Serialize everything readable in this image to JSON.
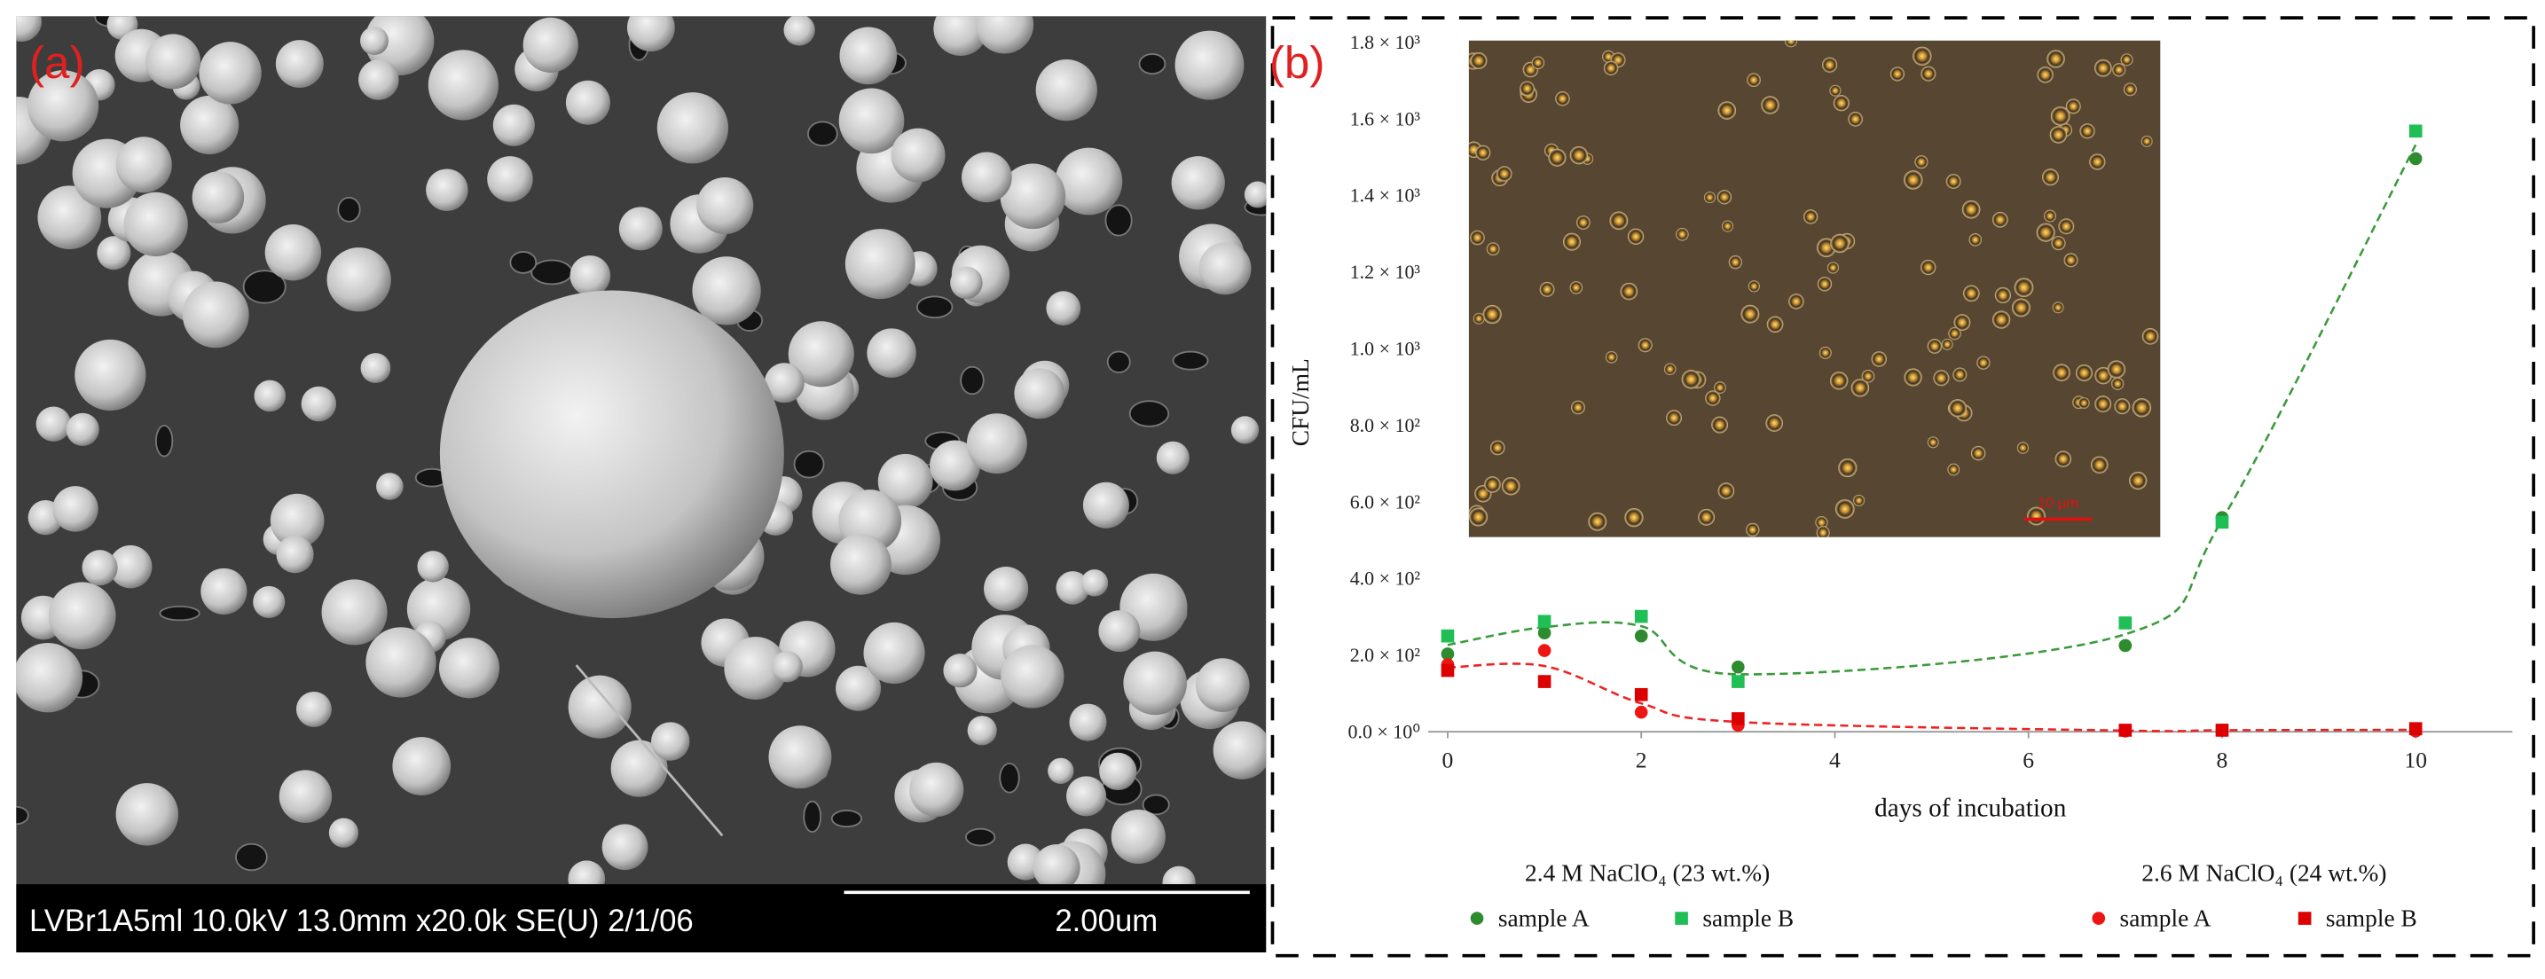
{
  "panel_a": {
    "label": "(a)",
    "info": "LVBr1A5ml 10.0kV 13.0mm x20.0k SE(U) 2/1/06",
    "scale_bar": "2.00um"
  },
  "panel_b": {
    "label": "(b)",
    "inset_scale_bar": "10 µm"
  },
  "chart_data": {
    "type": "scatter",
    "x_label": "days of incubation",
    "y_label": "CFU/mL",
    "xlim": [
      -0.2,
      11
    ],
    "xticks": [
      0,
      2,
      4,
      6,
      8,
      10
    ],
    "ylim": [
      0,
      1800
    ],
    "yticks": [
      {
        "value": 0,
        "label": "0.0 × 10⁰"
      },
      {
        "value": 200,
        "label": "2.0 × 10²"
      },
      {
        "value": 400,
        "label": "4.0 × 10²"
      },
      {
        "value": 600,
        "label": "6.0 × 10²"
      },
      {
        "value": 800,
        "label": "8.0 × 10²"
      },
      {
        "value": 1000,
        "label": "1.0 × 10³"
      },
      {
        "value": 1200,
        "label": "1.2 × 10³"
      },
      {
        "value": 1400,
        "label": "1.4 × 10³"
      },
      {
        "value": 1600,
        "label": "1.6 × 10³"
      },
      {
        "value": 1800,
        "label": "1.8 × 10³"
      }
    ],
    "grid": false,
    "groups": [
      {
        "title": "2.4 M NaClO₄ (23 wt.%)",
        "trend_color": "#3a9a3a",
        "series": [
          {
            "name": "sample A",
            "marker": "circle",
            "color": "#2e8b2e",
            "x": [
              0,
              1,
              2,
              3,
              7,
              8,
              10
            ],
            "values": [
              203,
              258,
              250,
              169,
              225,
              559,
              1496
            ]
          },
          {
            "name": "sample B",
            "marker": "square",
            "color": "#1fbf55",
            "x": [
              0,
              1,
              2,
              3,
              7,
              8,
              10
            ],
            "values": [
              250,
              288,
              301,
              131,
              284,
              547,
              1568
            ]
          }
        ]
      },
      {
        "title": "2.6 M NaClO₄ (24 wt.%)",
        "trend_color": "#ee2222",
        "series": [
          {
            "name": "sample A",
            "marker": "circle",
            "color": "#ee1515",
            "x": [
              0,
              1,
              2,
              3,
              7,
              8,
              10
            ],
            "values": [
              175,
              212,
              51,
              17,
              2,
              4,
              2
            ]
          },
          {
            "name": "sample B",
            "marker": "square",
            "color": "#dd0000",
            "x": [
              0,
              1,
              2,
              3,
              7,
              8,
              10
            ],
            "values": [
              160,
              131,
              97,
              34,
              4,
              4,
              8
            ]
          }
        ]
      }
    ]
  }
}
